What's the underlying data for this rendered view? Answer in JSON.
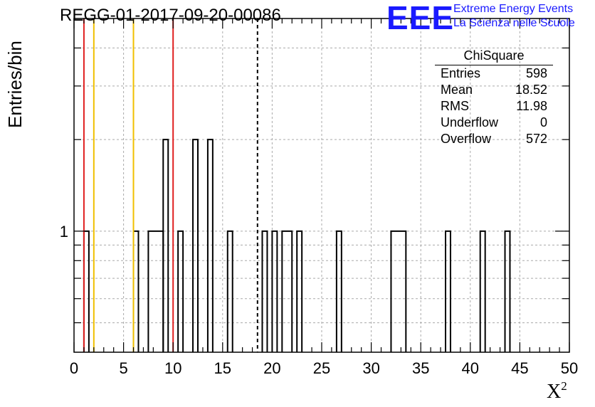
{
  "title": "REGG-01-2017-09-20-00086",
  "logo": {
    "text": "EEE",
    "line1": "Extreme Energy Events",
    "line2": "La Scienza nelle Scuole",
    "color": "#1a1aff"
  },
  "stats_box": {
    "title": "ChiSquare",
    "rows": [
      {
        "label": "Entries",
        "value": "598"
      },
      {
        "label": "Mean",
        "value": "18.52"
      },
      {
        "label": "RMS",
        "value": "11.98"
      },
      {
        "label": "Underflow",
        "value": "0"
      },
      {
        "label": "Overflow",
        "value": "572"
      }
    ]
  },
  "chart_data": {
    "type": "bar",
    "histogram": true,
    "title": "REGG-01-2017-09-20-00086",
    "xlabel": "X",
    "xlabel_superscript": "2",
    "ylabel": "Entries/bin",
    "xlim": [
      0,
      50
    ],
    "ylim": [
      0.4,
      5
    ],
    "yscale": "log",
    "x_ticks": [
      "0",
      "5",
      "10",
      "15",
      "20",
      "25",
      "30",
      "35",
      "40",
      "45",
      "50"
    ],
    "y_tick_labels": [
      "1"
    ],
    "grid": true,
    "bin_width": 0.5,
    "bins": [
      {
        "x0": 1.0,
        "x1": 1.5,
        "value": 1
      },
      {
        "x0": 6.0,
        "x1": 6.5,
        "value": 1
      },
      {
        "x0": 7.5,
        "x1": 9.0,
        "value": 1
      },
      {
        "x0": 9.0,
        "x1": 9.5,
        "value": 2
      },
      {
        "x0": 10.5,
        "x1": 11.0,
        "value": 1
      },
      {
        "x0": 12.0,
        "x1": 12.5,
        "value": 2
      },
      {
        "x0": 13.5,
        "x1": 14.0,
        "value": 2
      },
      {
        "x0": 15.5,
        "x1": 16.0,
        "value": 1
      },
      {
        "x0": 19.0,
        "x1": 19.5,
        "value": 1
      },
      {
        "x0": 20.0,
        "x1": 20.5,
        "value": 1
      },
      {
        "x0": 21.0,
        "x1": 22.0,
        "value": 1
      },
      {
        "x0": 22.5,
        "x1": 23.0,
        "value": 1
      },
      {
        "x0": 26.5,
        "x1": 27.0,
        "value": 1
      },
      {
        "x0": 32.0,
        "x1": 33.5,
        "value": 1
      },
      {
        "x0": 37.5,
        "x1": 38.0,
        "value": 1
      },
      {
        "x0": 41.0,
        "x1": 41.5,
        "value": 1
      },
      {
        "x0": 43.5,
        "x1": 44.0,
        "value": 1
      }
    ],
    "reference_lines": [
      {
        "x": 1.0,
        "color": "#e02020",
        "style": "solid"
      },
      {
        "x": 2.0,
        "color": "#f0c000",
        "style": "solid"
      },
      {
        "x": 6.0,
        "color": "#f0c000",
        "style": "solid"
      },
      {
        "x": 10.0,
        "color": "#e02020",
        "style": "solid"
      },
      {
        "x": 18.52,
        "color": "#000000",
        "style": "dashed"
      }
    ]
  }
}
